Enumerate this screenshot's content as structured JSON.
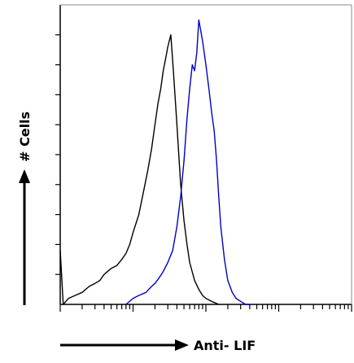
{
  "chart_data": {
    "type": "line",
    "title": "",
    "xlabel": "Anti- LIF",
    "ylabel": "# Cells",
    "x_scale": "log",
    "xlim": [
      1,
      10000
    ],
    "ylim": [
      0,
      100
    ],
    "grid": false,
    "legend": "none",
    "tick_labels_shown": false,
    "series": [
      {
        "color": "#000000",
        "x": [
          1,
          1.1,
          1.3,
          1.6,
          2,
          2.5,
          3,
          3.5,
          4,
          5,
          6,
          7,
          8,
          9,
          10,
          12,
          14,
          16,
          18,
          20,
          22,
          24,
          26,
          28,
          30,
          33,
          36,
          40,
          45,
          50,
          55,
          60,
          70,
          80,
          90,
          100,
          120,
          150
        ],
        "y": [
          18,
          0,
          2,
          3,
          4,
          6,
          7,
          8,
          10,
          12,
          13,
          15,
          17,
          20,
          24,
          30,
          38,
          45,
          52,
          60,
          67,
          72,
          78,
          82,
          86,
          90,
          77,
          60,
          40,
          28,
          20,
          14,
          8,
          5,
          3,
          2,
          1,
          0
        ]
      },
      {
        "color": "#0000cc",
        "x": [
          8,
          10,
          12,
          15,
          18,
          20,
          23,
          26,
          30,
          35,
          40,
          45,
          50,
          55,
          60,
          65,
          70,
          75,
          80,
          90,
          100,
          110,
          120,
          130,
          140,
          150,
          160,
          180,
          200,
          230,
          260,
          300,
          350,
          400
        ],
        "y": [
          0,
          2,
          3,
          4,
          6,
          7,
          9,
          11,
          14,
          18,
          26,
          36,
          48,
          62,
          72,
          80,
          78,
          84,
          95,
          88,
          80,
          72,
          64,
          58,
          48,
          36,
          26,
          15,
          8,
          4,
          2,
          1,
          0,
          0
        ]
      }
    ]
  }
}
